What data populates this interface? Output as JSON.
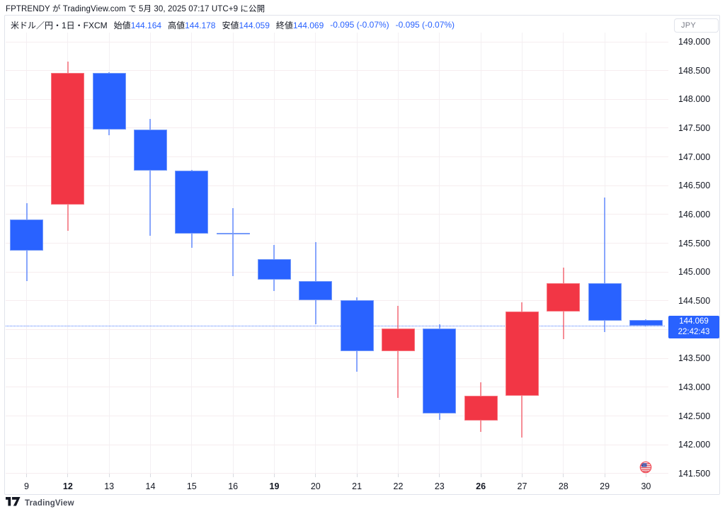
{
  "attribution": {
    "text": "FPTRENDY が TradingView.com で 5月 30, 2025 07:17 UTC+9 に公開"
  },
  "legend": {
    "symbol": "米ドル／円・1日・FXCM",
    "fields": [
      {
        "label": "始値",
        "value": "144.164"
      },
      {
        "label": "高値",
        "value": "144.178"
      },
      {
        "label": "安値",
        "value": "144.059"
      },
      {
        "label": "終値",
        "value": "144.069"
      }
    ],
    "changes": [
      "-0.095 (-0.07%)",
      "-0.095 (-0.07%)"
    ]
  },
  "axis": {
    "currency_label": "JPY",
    "price_ticks": [
      "149.000",
      "148.500",
      "148.000",
      "147.500",
      "147.000",
      "146.500",
      "146.000",
      "145.500",
      "145.000",
      "144.500",
      "144.000",
      "143.500",
      "143.000",
      "142.500",
      "142.000",
      "141.500"
    ],
    "price_tick_values": [
      149.0,
      148.5,
      148.0,
      147.5,
      147.0,
      146.5,
      146.0,
      145.5,
      145.0,
      144.5,
      144.0,
      143.5,
      143.0,
      142.5,
      142.0,
      141.5
    ],
    "last_price_label": "144.069",
    "countdown": "22:42:43"
  },
  "chart_data": {
    "type": "candlestick",
    "title": "米ドル／円・1日・FXCM",
    "xlabel": "",
    "ylabel": "JPY",
    "ylim": [
      141.5,
      149.0
    ],
    "grid": true,
    "up_color": "#F23645",
    "down_color": "#2962FF",
    "last_price": 144.069,
    "x_labels": [
      "9",
      "12",
      "13",
      "14",
      "15",
      "16",
      "19",
      "20",
      "21",
      "22",
      "23",
      "26",
      "27",
      "28",
      "29",
      "30"
    ],
    "bold_x_labels": [
      "12",
      "19",
      "26"
    ],
    "candles": [
      {
        "date": "9",
        "open": 145.91,
        "high": 146.2,
        "low": 144.84,
        "close": 145.37,
        "direction": "down"
      },
      {
        "date": "12",
        "open": 146.17,
        "high": 148.65,
        "low": 145.72,
        "close": 148.46,
        "direction": "up"
      },
      {
        "date": "13",
        "open": 148.46,
        "high": 148.47,
        "low": 147.38,
        "close": 147.48,
        "direction": "down"
      },
      {
        "date": "14",
        "open": 147.48,
        "high": 147.66,
        "low": 145.63,
        "close": 146.76,
        "direction": "down"
      },
      {
        "date": "15",
        "open": 146.76,
        "high": 146.77,
        "low": 145.42,
        "close": 145.67,
        "direction": "down"
      },
      {
        "date": "16",
        "open": 145.68,
        "high": 146.11,
        "low": 144.93,
        "close": 145.66,
        "direction": "down"
      },
      {
        "date": "19",
        "open": 145.23,
        "high": 145.47,
        "low": 144.67,
        "close": 144.87,
        "direction": "down"
      },
      {
        "date": "20",
        "open": 144.85,
        "high": 145.52,
        "low": 144.1,
        "close": 144.51,
        "direction": "down"
      },
      {
        "date": "21",
        "open": 144.51,
        "high": 144.56,
        "low": 143.27,
        "close": 143.63,
        "direction": "down"
      },
      {
        "date": "22",
        "open": 143.63,
        "high": 144.41,
        "low": 142.81,
        "close": 144.02,
        "direction": "up"
      },
      {
        "date": "23",
        "open": 144.02,
        "high": 144.1,
        "low": 142.43,
        "close": 142.55,
        "direction": "down"
      },
      {
        "date": "26",
        "open": 142.42,
        "high": 143.08,
        "low": 142.23,
        "close": 142.85,
        "direction": "up"
      },
      {
        "date": "27",
        "open": 142.85,
        "high": 144.47,
        "low": 142.13,
        "close": 144.32,
        "direction": "up"
      },
      {
        "date": "28",
        "open": 144.32,
        "high": 145.08,
        "low": 143.84,
        "close": 144.81,
        "direction": "up"
      },
      {
        "date": "29",
        "open": 144.81,
        "high": 146.29,
        "low": 143.96,
        "close": 144.16,
        "direction": "down"
      },
      {
        "date": "30",
        "open": 144.164,
        "high": 144.178,
        "low": 144.059,
        "close": 144.069,
        "direction": "down"
      }
    ]
  },
  "markers": {
    "us_flag": {
      "date": "30",
      "name": "us-flag-marker"
    }
  },
  "footer": {
    "brand": "TradingView"
  },
  "colors": {
    "up": "#F23645",
    "down": "#2962FF",
    "accent_blue": "#2962FF",
    "text": "#131722",
    "muted_text": "#787b86",
    "grid": "#f6edef",
    "frame_border": "#e0e3eb"
  }
}
